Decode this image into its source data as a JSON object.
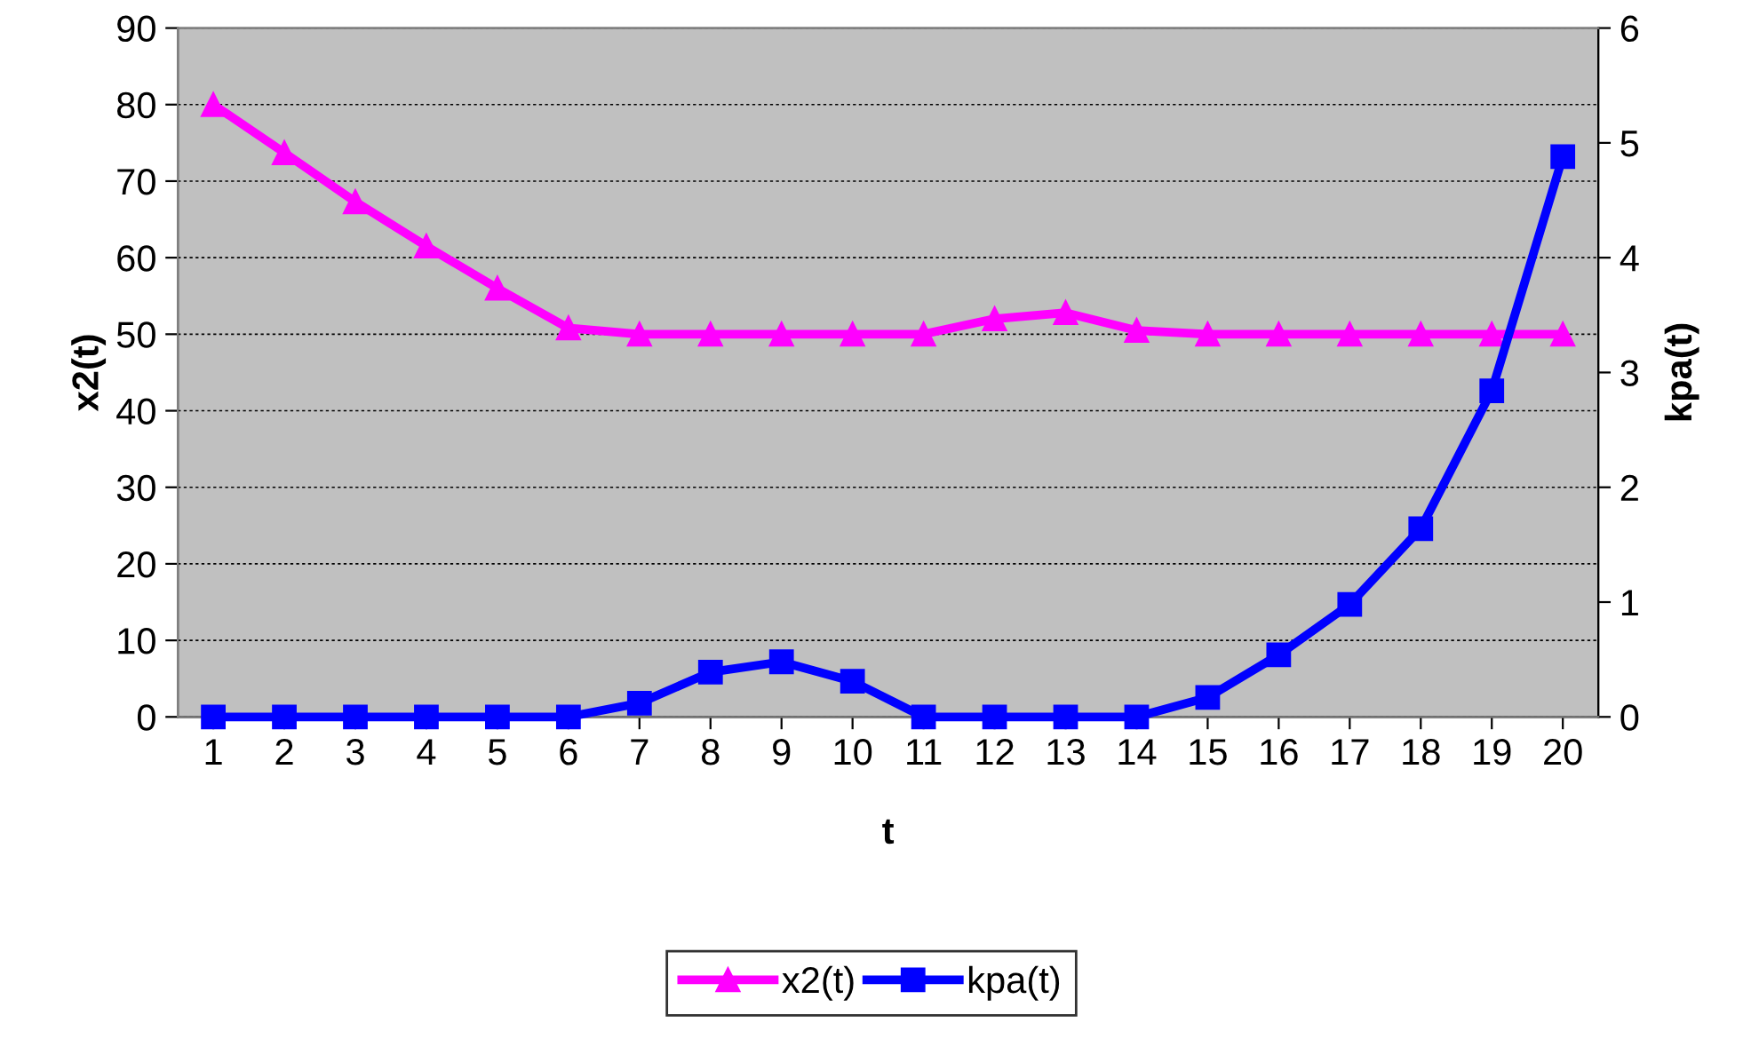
{
  "chart_data": {
    "type": "line",
    "xlabel": "t",
    "ylabel": "x2(t)",
    "y2label": "kpa(t)",
    "categories": [
      "1",
      "2",
      "3",
      "4",
      "5",
      "6",
      "7",
      "8",
      "9",
      "10",
      "11",
      "12",
      "13",
      "14",
      "15",
      "16",
      "17",
      "18",
      "19",
      "20"
    ],
    "series": [
      {
        "name": "x2(t)",
        "color": "#ff00ff",
        "marker": "triangle",
        "values": [
          80,
          73.7,
          67.3,
          61.5,
          56,
          50.8,
          50,
          50,
          50,
          50,
          50,
          52,
          52.8,
          50.5,
          50,
          50,
          50,
          50,
          50,
          50
        ]
      },
      {
        "name": "kpa(t)",
        "color": "#0000ff",
        "marker": "square",
        "axis": "y2",
        "values": [
          0,
          0,
          0,
          0,
          0,
          0,
          0.12,
          0.39,
          0.48,
          0.31,
          0,
          0,
          0,
          0,
          0.17,
          0.54,
          0.98,
          1.64,
          2.84,
          4.88
        ]
      }
    ],
    "ylim": [
      0,
      90
    ],
    "yticks": [
      0,
      10,
      20,
      30,
      40,
      50,
      60,
      70,
      80,
      90
    ],
    "y2lim": [
      0,
      6
    ],
    "y2ticks": [
      0,
      1,
      2,
      3,
      4,
      5,
      6
    ],
    "grid": "y",
    "legend": "bottom",
    "line_style": "solid"
  }
}
